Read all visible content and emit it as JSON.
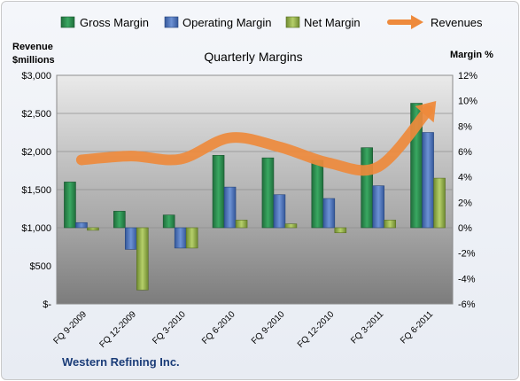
{
  "chart_data": {
    "type": "bar",
    "title": "Quarterly Margins",
    "company": "Western Refining Inc.",
    "categories": [
      "FQ 9-2009",
      "FQ 12-2009",
      "FQ 3-2010",
      "FQ 6-2010",
      "FQ 9-2010",
      "FQ 12-2010",
      "FQ 3-2011",
      "FQ 6-2011"
    ],
    "left_axis": {
      "title_line1": "Revenue",
      "title_line2": "$millions",
      "ylim": [
        0,
        3000
      ],
      "ticks": [
        0,
        500,
        1000,
        1500,
        2000,
        2500,
        3000
      ],
      "tick_labels": [
        "$-",
        "$500",
        "$1,000",
        "$1,500",
        "$2,000",
        "$2,500",
        "$3,000"
      ]
    },
    "right_axis": {
      "title": "Margin %",
      "ylim": [
        -6,
        12
      ],
      "ticks": [
        -6,
        -4,
        -2,
        0,
        2,
        4,
        6,
        8,
        10,
        12
      ],
      "tick_labels": [
        "-6%",
        "-4%",
        "-2%",
        "0%",
        "2%",
        "4%",
        "6%",
        "8%",
        "10%",
        "12%"
      ]
    },
    "series": [
      {
        "name": "Gross Margin",
        "type": "bar",
        "axis": "right",
        "color": "#2e8b4f",
        "values": [
          3.6,
          1.3,
          1.0,
          5.7,
          5.5,
          5.3,
          6.3,
          9.8
        ]
      },
      {
        "name": "Operating Margin",
        "type": "bar",
        "axis": "right",
        "color": "#4f73b8",
        "values": [
          0.4,
          -1.7,
          -1.6,
          3.2,
          2.6,
          2.3,
          3.3,
          7.5
        ]
      },
      {
        "name": "Net Margin",
        "type": "bar",
        "axis": "right",
        "color": "#94b04c",
        "values": [
          -0.2,
          -4.9,
          -1.6,
          0.6,
          0.3,
          -0.4,
          0.6,
          3.9
        ]
      },
      {
        "name": "Revenues",
        "type": "line",
        "axis": "left",
        "color": "#ee8a3c",
        "values": [
          1890,
          1940,
          1900,
          2180,
          2060,
          1850,
          1800,
          2540
        ]
      }
    ],
    "grid": true,
    "legend": "top"
  },
  "colors": {
    "plot_top": "#a8a8a8",
    "plot_bottom": "#6d6d6d",
    "plot_zero_top": "#e6e6e6"
  }
}
